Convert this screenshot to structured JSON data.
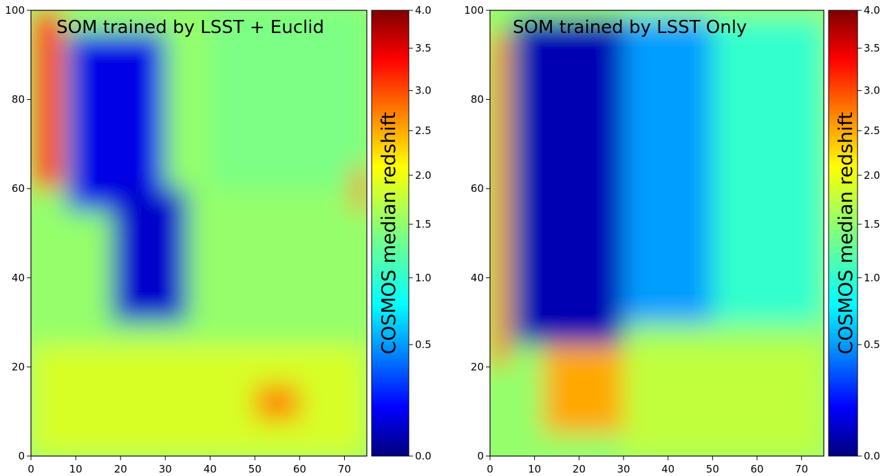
{
  "chart_data": [
    {
      "type": "heatmap",
      "title": "SOM trained by LSST + Euclid",
      "xlabel": "",
      "ylabel": "",
      "xlim": [
        0,
        75
      ],
      "ylim": [
        0,
        100
      ],
      "xticks": [
        "0",
        "10",
        "20",
        "30",
        "40",
        "50",
        "60",
        "70"
      ],
      "yticks": [
        "0",
        "20",
        "40",
        "60",
        "80",
        "100"
      ],
      "grid": false,
      "colorbar": {
        "label": "COSMOS median redshift",
        "ticks": [
          "0.0",
          "0.5",
          "1.0",
          "1.5",
          "2.0",
          "2.5",
          "3.0",
          "3.5",
          "4.0"
        ],
        "colormap": "jet",
        "range": [
          0.0,
          4.0
        ]
      },
      "regions": [
        {
          "x": [
            0,
            7
          ],
          "y": [
            60,
            100
          ],
          "z": 3.2
        },
        {
          "x": [
            8,
            30
          ],
          "y": [
            55,
            95
          ],
          "z": 0.2
        },
        {
          "x": [
            18,
            35
          ],
          "y": [
            30,
            60
          ],
          "z": 0.15
        },
        {
          "x": [
            40,
            75
          ],
          "y": [
            60,
            100
          ],
          "z": 1.4
        },
        {
          "x": [
            0,
            75
          ],
          "y": [
            0,
            25
          ],
          "z": 1.8
        },
        {
          "x": [
            50,
            60
          ],
          "y": [
            8,
            16
          ],
          "z": 2.6
        },
        {
          "x": [
            72,
            75
          ],
          "y": [
            55,
            65
          ],
          "z": 2.8
        }
      ]
    },
    {
      "type": "heatmap",
      "title": "SOM trained by LSST Only",
      "xlabel": "",
      "ylabel": "",
      "xlim": [
        0,
        75
      ],
      "ylim": [
        0,
        100
      ],
      "xticks": [
        "0",
        "10",
        "20",
        "30",
        "40",
        "50",
        "60",
        "70"
      ],
      "yticks": [
        "0",
        "20",
        "40",
        "60",
        "80",
        "100"
      ],
      "grid": false,
      "colorbar": {
        "label": "COSMOS median redshift",
        "ticks": [
          "0.0",
          "0.5",
          "1.0",
          "1.5",
          "2.0",
          "2.5",
          "3.0",
          "3.5",
          "4.0"
        ],
        "colormap": "jet",
        "range": [
          0.0,
          4.0
        ]
      },
      "regions": [
        {
          "x": [
            0,
            4
          ],
          "y": [
            20,
            95
          ],
          "z": 2.7
        },
        {
          "x": [
            5,
            30
          ],
          "y": [
            25,
            98
          ],
          "z": 0.1
        },
        {
          "x": [
            30,
            50
          ],
          "y": [
            30,
            98
          ],
          "z": 0.6
        },
        {
          "x": [
            50,
            75
          ],
          "y": [
            30,
            98
          ],
          "z": 1.1
        },
        {
          "x": [
            12,
            30
          ],
          "y": [
            5,
            25
          ],
          "z": 2.4
        },
        {
          "x": [
            30,
            75
          ],
          "y": [
            0,
            25
          ],
          "z": 1.7
        }
      ]
    }
  ]
}
